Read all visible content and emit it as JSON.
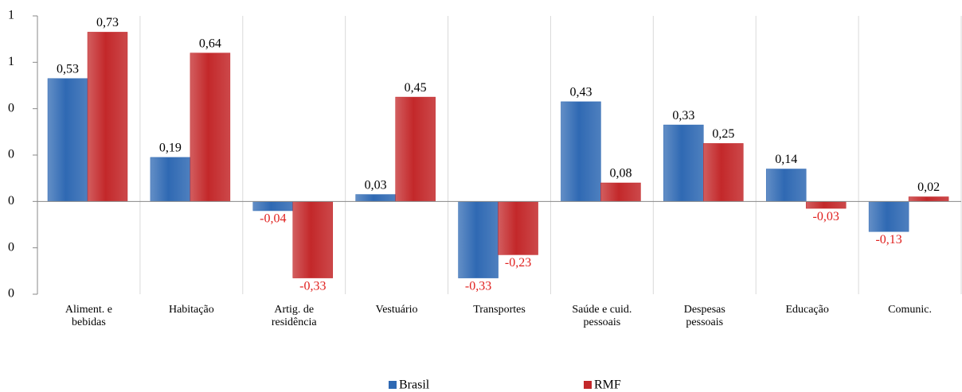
{
  "chart_data": {
    "type": "bar",
    "categories": [
      "Aliment. e\nbebidas",
      "Habitação",
      "Artig. de\nresidência",
      "Vestuário",
      "Transportes",
      "Saúde e cuid.\npessoais",
      "Despesas\npessoais",
      "Educação",
      "Comunic."
    ],
    "series": [
      {
        "name": "Brasil",
        "color": "#2f69b3",
        "values": [
          0.53,
          0.19,
          -0.04,
          0.03,
          -0.33,
          0.43,
          0.33,
          0.14,
          -0.13
        ],
        "value_labels": [
          "0,53",
          "0,19",
          "-0,04",
          "0,03",
          "-0,33",
          "0,43",
          "0,33",
          "0,14",
          "-0,13"
        ]
      },
      {
        "name": "RMF",
        "color": "#c3282a",
        "values": [
          0.73,
          0.64,
          -0.33,
          0.45,
          -0.23,
          0.08,
          0.25,
          -0.03,
          0.02
        ],
        "value_labels": [
          "0,73",
          "0,64",
          "-0,33",
          "0,45",
          "-0,23",
          "0,08",
          "0,25",
          "-0,03",
          "0,02"
        ]
      }
    ],
    "ylim": [
      -0.4,
      0.8
    ],
    "yticks": [
      {
        "value": -0.4,
        "label": "0"
      },
      {
        "value": -0.2,
        "label": "0"
      },
      0,
      {
        "value": 0.2,
        "label": "0"
      },
      {
        "value": 0.4,
        "label": "0"
      },
      {
        "value": 0.6,
        "label": "1"
      },
      {
        "value": 0.8,
        "label": "1"
      }
    ],
    "grid": true,
    "negative_label_color": "#e0201e",
    "legend": "bottom"
  }
}
